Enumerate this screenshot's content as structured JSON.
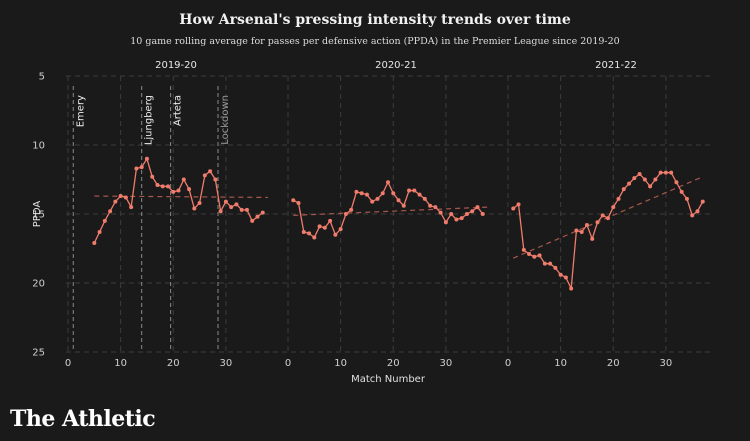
{
  "title": "How Arsenal's pressing intensity trends over time",
  "subtitle": "10 game rolling average for passes per defensive action (PPDA) in the Premier League since 2019-20",
  "brand": "The Athletic",
  "colors": {
    "background": "#1a1a1a",
    "line": "#f07c6c",
    "trend": "#a8574d",
    "grid": "#3c3c3c",
    "event_line": "#8a8a8a"
  },
  "chart_data": {
    "type": "line",
    "ylabel": "PPDA",
    "xlabel": "Match Number",
    "y_inverted": true,
    "ylim": [
      25,
      5
    ],
    "yticks": [
      5,
      10,
      15,
      20,
      25
    ],
    "grid": true,
    "panels": [
      {
        "season": "2019-20",
        "xlim": [
          0,
          38
        ],
        "xticks": [
          0,
          10,
          20,
          30
        ],
        "x": [
          5,
          6,
          7,
          8,
          9,
          10,
          11,
          12,
          13,
          14,
          15,
          16,
          17,
          18,
          19,
          20,
          21,
          22,
          23,
          24,
          25,
          26,
          27,
          28,
          29,
          30,
          31,
          32,
          33,
          34,
          35,
          36,
          37,
          38
        ],
        "values": [
          17.1,
          16.3,
          15.5,
          14.8,
          14.1,
          13.7,
          13.8,
          14.5,
          11.7,
          11.6,
          11.0,
          12.3,
          12.9,
          13.0,
          13.0,
          13.4,
          13.3,
          12.5,
          13.2,
          14.6,
          14.2,
          12.2,
          11.9,
          12.5,
          14.8,
          14.1,
          14.5,
          14.3,
          14.7,
          14.7,
          15.5,
          15.2,
          14.9,
          null
        ],
        "trend": {
          "x": [
            5,
            38
          ],
          "y": [
            13.7,
            13.8
          ]
        },
        "events": [
          {
            "x": 1,
            "label": "Emery"
          },
          {
            "x": 14,
            "label": "Ljungberg"
          },
          {
            "x": 19.5,
            "label": "Arteta"
          },
          {
            "x": 28.5,
            "label": "Lockdown"
          }
        ]
      },
      {
        "season": "2020-21",
        "xlim": [
          0,
          38
        ],
        "xticks": [
          0,
          10,
          20,
          30
        ],
        "x": [
          1,
          2,
          3,
          4,
          5,
          6,
          7,
          8,
          9,
          10,
          11,
          12,
          13,
          14,
          15,
          16,
          17,
          18,
          19,
          20,
          21,
          22,
          23,
          24,
          25,
          26,
          27,
          28,
          29,
          30,
          31,
          32,
          33,
          34,
          35,
          36,
          37,
          38
        ],
        "values": [
          14.0,
          14.2,
          16.3,
          16.4,
          16.7,
          15.9,
          16.0,
          15.5,
          16.5,
          16.1,
          15.0,
          14.7,
          13.4,
          13.5,
          13.6,
          14.1,
          13.9,
          13.5,
          12.7,
          13.5,
          14.0,
          14.4,
          13.3,
          13.3,
          13.6,
          13.9,
          14.4,
          14.5,
          14.9,
          15.6,
          15.0,
          15.4,
          15.3,
          15.0,
          14.8,
          14.5,
          15.0,
          null
        ],
        "trend": {
          "x": [
            1,
            38
          ],
          "y": [
            15.1,
            14.5
          ]
        },
        "events": []
      },
      {
        "season": "2021-22",
        "xlim": [
          0,
          38
        ],
        "xticks": [
          0,
          10,
          20,
          30
        ],
        "x": [
          1,
          2,
          3,
          4,
          5,
          6,
          7,
          8,
          9,
          10,
          11,
          12,
          13,
          14,
          15,
          16,
          17,
          18,
          19,
          20,
          21,
          22,
          23,
          24,
          25,
          26,
          27,
          28,
          29,
          30,
          31,
          32,
          33,
          34,
          35,
          36,
          37,
          38
        ],
        "values": [
          14.6,
          14.3,
          17.6,
          17.9,
          18.1,
          18.0,
          18.6,
          18.6,
          18.9,
          19.4,
          19.6,
          20.4,
          16.2,
          16.3,
          15.8,
          16.8,
          15.6,
          15.1,
          15.3,
          14.5,
          13.9,
          13.2,
          12.8,
          12.4,
          12.1,
          12.5,
          13.0,
          12.5,
          12.0,
          12.0,
          12.0,
          12.7,
          13.4,
          13.9,
          15.1,
          14.8,
          14.1,
          null
        ],
        "trend": {
          "x": [
            1,
            37
          ],
          "y": [
            18.2,
            12.3
          ]
        },
        "events": []
      }
    ]
  }
}
